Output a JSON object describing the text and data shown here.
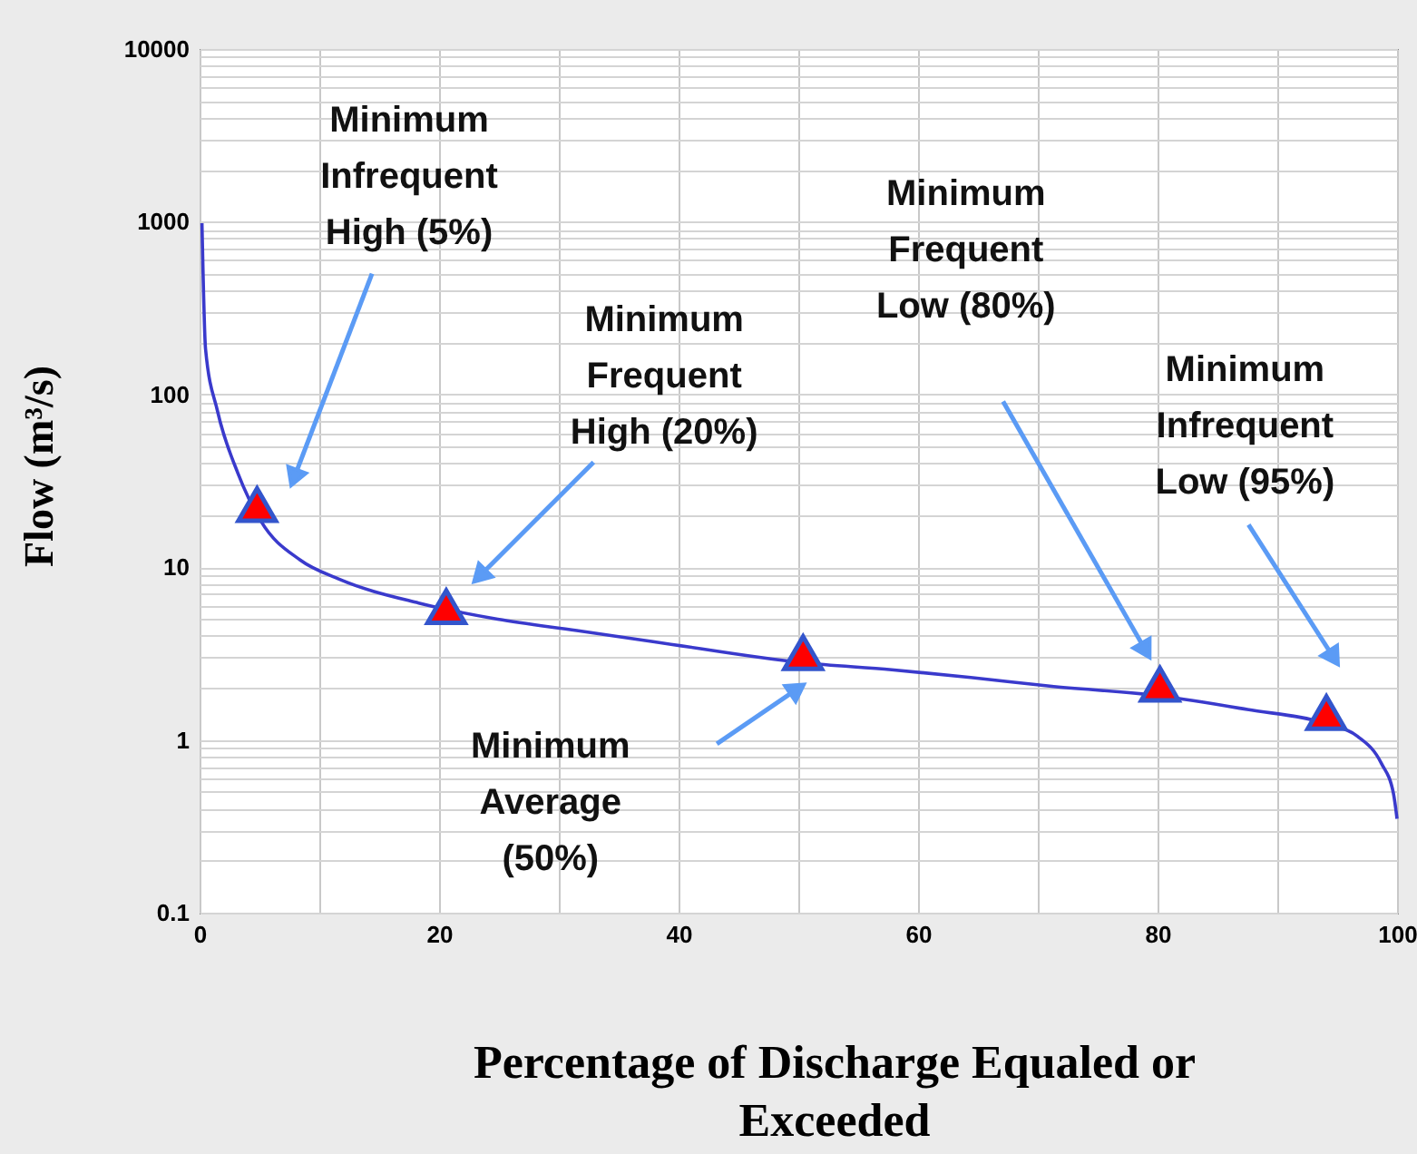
{
  "chart_data": {
    "type": "line",
    "xlabel": "Percentage of Discharge Equaled or Exceeded",
    "ylabel": "Flow (m³/s)",
    "log": "y",
    "grid": true,
    "xlim": [
      0,
      100
    ],
    "xticks": [
      0,
      {
        "value": 10,
        "label": null
      },
      20,
      {
        "value": 30,
        "label": null
      },
      40,
      {
        "value": 50,
        "label": null
      },
      60,
      {
        "value": 70,
        "label": null
      },
      80,
      {
        "value": 90,
        "label": null
      },
      100
    ],
    "ylim": [
      0.1,
      10000
    ],
    "yticks": [
      0.1,
      {
        "value": 0.2,
        "label": null
      },
      {
        "value": 0.3,
        "label": null
      },
      {
        "value": 0.4,
        "label": null
      },
      {
        "value": 0.5,
        "label": null
      },
      {
        "value": 0.6,
        "label": null
      },
      {
        "value": 0.7,
        "label": null
      },
      {
        "value": 0.8,
        "label": null
      },
      {
        "value": 0.9,
        "label": null
      },
      1,
      {
        "value": 2,
        "label": null
      },
      {
        "value": 3,
        "label": null
      },
      {
        "value": 4,
        "label": null
      },
      {
        "value": 5,
        "label": null
      },
      {
        "value": 6,
        "label": null
      },
      {
        "value": 7,
        "label": null
      },
      {
        "value": 8,
        "label": null
      },
      {
        "value": 9,
        "label": null
      },
      10,
      {
        "value": 20,
        "label": null
      },
      {
        "value": 30,
        "label": null
      },
      {
        "value": 40,
        "label": null
      },
      {
        "value": 50,
        "label": null
      },
      {
        "value": 60,
        "label": null
      },
      {
        "value": 70,
        "label": null
      },
      {
        "value": 80,
        "label": null
      },
      {
        "value": 90,
        "label": null
      },
      100,
      {
        "value": 200,
        "label": null
      },
      {
        "value": 300,
        "label": null
      },
      {
        "value": 400,
        "label": null
      },
      {
        "value": 500,
        "label": null
      },
      {
        "value": 600,
        "label": null
      },
      {
        "value": 700,
        "label": null
      },
      {
        "value": 800,
        "label": null
      },
      {
        "value": 900,
        "label": null
      },
      1000,
      {
        "value": 2000,
        "label": null
      },
      {
        "value": 3000,
        "label": null
      },
      {
        "value": 4000,
        "label": null
      },
      {
        "value": 5000,
        "label": null
      },
      {
        "value": 6000,
        "label": null
      },
      {
        "value": 7000,
        "label": null
      },
      {
        "value": 8000,
        "label": null
      },
      {
        "value": 9000,
        "label": null
      },
      10000
    ],
    "series": [
      {
        "color": "#3a3acc",
        "line_style": "solid",
        "x": [
          0.2,
          0.5,
          1.5,
          3.2,
          5.1,
          8.4,
          11.7,
          18.3,
          24.9,
          31.5,
          38,
          50.4,
          57.8,
          64.4,
          71,
          80.2,
          87.5,
          94.1,
          96.7,
          98.7,
          99.7,
          100
        ],
        "values": [
          980,
          183,
          80,
          35,
          18.6,
          11,
          8.5,
          6.2,
          5.0,
          4.3,
          3.7,
          2.8,
          2.55,
          2.3,
          2.05,
          1.8,
          1.5,
          1.24,
          1.05,
          0.73,
          0.49,
          0.35
        ]
      },
      {
        "type": "scatter",
        "color": "#ff0000",
        "marker": "triangle",
        "x": [
          4.8,
          20.6,
          50.4,
          80.2,
          94.1
        ],
        "values": [
          23,
          5.9,
          3.2,
          2.1,
          1.44
        ]
      }
    ],
    "annotations": [
      "Minimum\nInfrequent\nHigh (5%)",
      "Minimum\nFrequent\nHigh (20%)",
      "Minimum\nAverage\n(50%)",
      "Minimum\nFrequent\nLow (80%)",
      "Minimum\nInfrequent\nLow (95%)"
    ]
  }
}
